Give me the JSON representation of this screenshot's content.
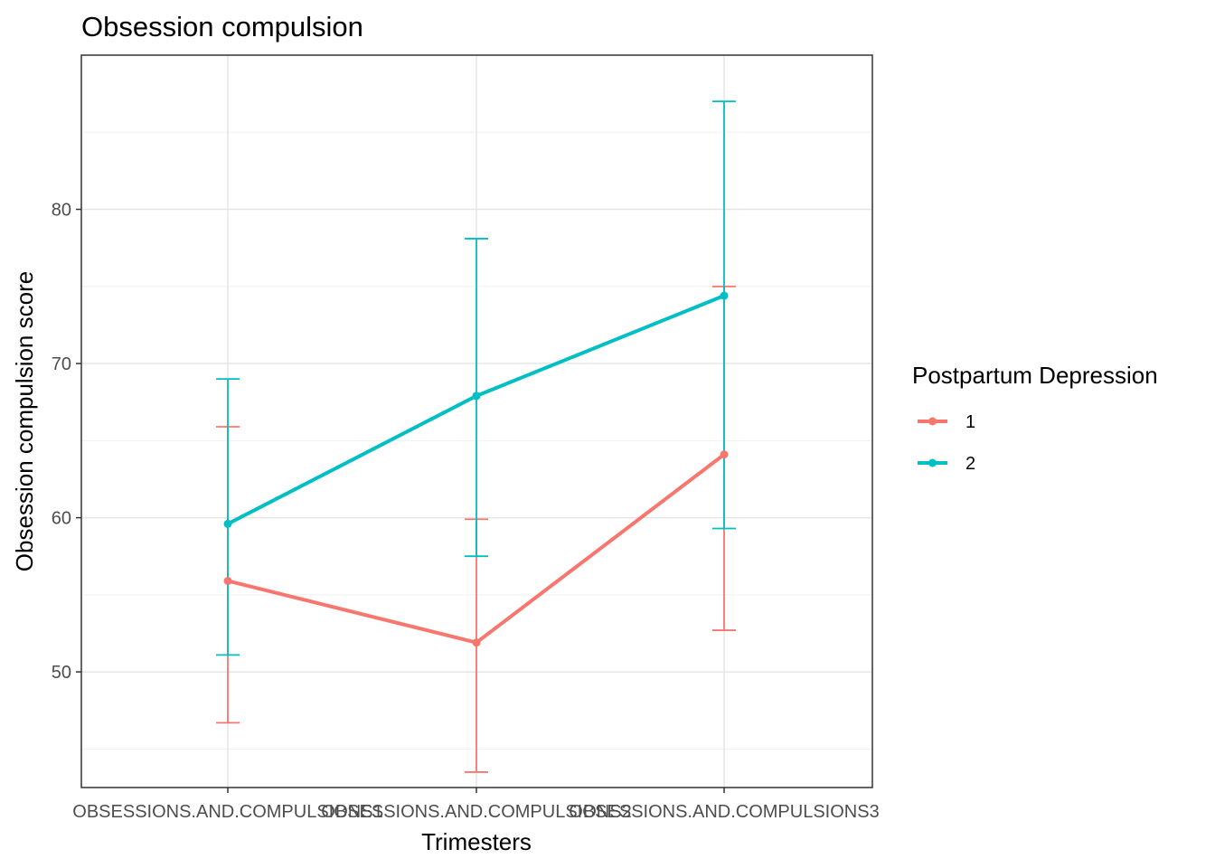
{
  "chart_data": {
    "type": "line",
    "title": "Obsession compulsion",
    "xlabel": "Trimesters",
    "ylabel": "Obsession compulsion score",
    "categories": [
      "OBSESSIONS.AND.COMPULSIONS1",
      "OBSESSIONS.AND.COMPULSIONS2",
      "OBSESSIONS.AND.COMPULSIONS3"
    ],
    "ylim": [
      42.5,
      90
    ],
    "yticks": [
      50,
      60,
      70,
      80
    ],
    "grid": true,
    "legend": {
      "title": "Postpartum Depression",
      "placement": "right"
    },
    "series": [
      {
        "name": "1",
        "color": "#F8766D",
        "values": [
          55.9,
          51.9,
          64.1
        ],
        "error_lower": [
          46.7,
          43.5,
          52.7
        ],
        "error_upper": [
          65.9,
          59.9,
          75.0
        ]
      },
      {
        "name": "2",
        "color": "#00BFC4",
        "values": [
          59.6,
          67.9,
          74.4
        ],
        "error_lower": [
          51.1,
          57.5,
          59.3
        ],
        "error_upper": [
          69.0,
          78.1,
          87.0
        ]
      }
    ]
  }
}
